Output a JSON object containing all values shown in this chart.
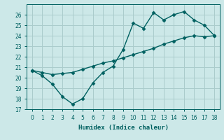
{
  "zigzag_x": [
    0,
    1,
    2,
    3,
    4,
    5,
    6,
    7,
    8,
    9,
    10,
    11,
    12,
    13,
    14,
    15,
    16,
    17,
    18
  ],
  "zigzag_y": [
    20.7,
    20.2,
    19.4,
    18.2,
    17.5,
    18.0,
    19.5,
    20.5,
    21.1,
    22.7,
    25.2,
    24.7,
    26.2,
    25.5,
    26.0,
    26.3,
    25.5,
    25.0,
    24.0
  ],
  "trend_x": [
    0,
    1,
    2,
    3,
    4,
    5,
    6,
    7,
    8,
    9,
    10,
    11,
    12,
    13,
    14,
    15,
    16,
    17,
    18
  ],
  "trend_y": [
    20.7,
    20.5,
    20.3,
    20.4,
    20.5,
    20.8,
    21.1,
    21.4,
    21.6,
    21.9,
    22.2,
    22.5,
    22.8,
    23.2,
    23.5,
    23.8,
    24.0,
    23.9,
    24.0
  ],
  "line_color": "#006060",
  "bg_color": "#cce8e8",
  "grid_color": "#aacccc",
  "xlabel": "Humidex (Indice chaleur)",
  "ylim": [
    17,
    27
  ],
  "xlim": [
    -0.5,
    18.5
  ],
  "yticks": [
    17,
    18,
    19,
    20,
    21,
    22,
    23,
    24,
    25,
    26
  ],
  "xticks": [
    0,
    1,
    2,
    3,
    4,
    5,
    6,
    7,
    8,
    9,
    10,
    11,
    12,
    13,
    14,
    15,
    16,
    17,
    18
  ],
  "marker_size": 2.5,
  "line_width": 1.0,
  "tick_fontsize": 5.5,
  "xlabel_fontsize": 6.5
}
